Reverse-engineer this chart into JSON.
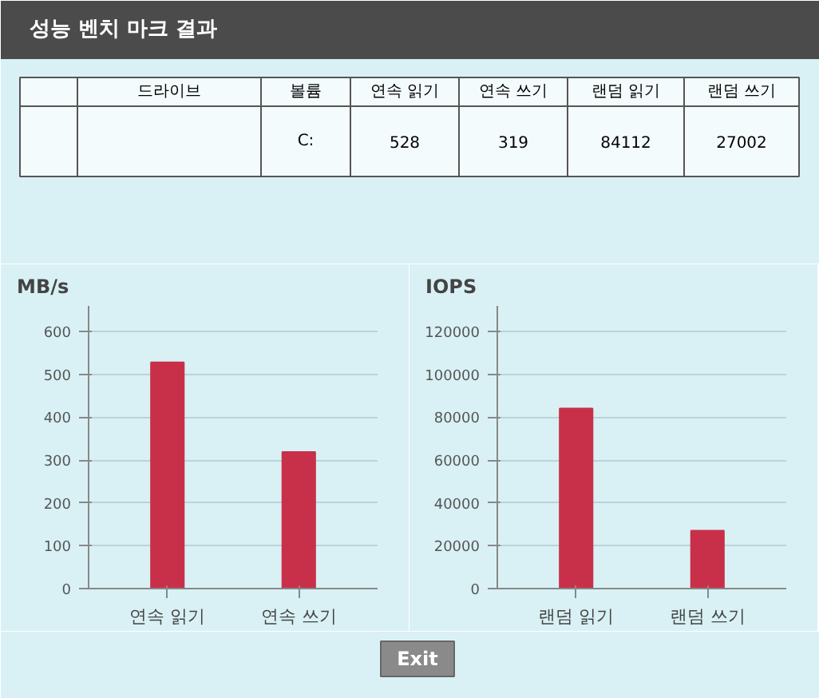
{
  "chart_data": [
    {
      "type": "other",
      "title": "성능 벤치 마크 결과",
      "annotations": [
        "드라이브",
        "볼륨",
        "연속 읽기",
        "연속 쓰기",
        "랜덤 읽기",
        "랜덤 쓰기",
        "C:",
        "528",
        "319",
        "84112",
        "27002",
        "Exit"
      ]
    },
    {
      "type": "bar",
      "ylabel": "MB/s",
      "categories": [
        "연속 읽기",
        "연속 쓰기"
      ],
      "series": [
        {
          "color": "#c8304a",
          "values": [
            528,
            319
          ]
        }
      ],
      "ylim": [
        0,
        660
      ],
      "yticks": [
        0,
        100,
        200,
        300,
        400,
        500,
        600
      ],
      "grid": "y"
    },
    {
      "type": "bar",
      "ylabel": "IOPS",
      "categories": [
        "랜덤 읽기",
        "랜덤 쓰기"
      ],
      "series": [
        {
          "color": "#c8304a",
          "values": [
            84112,
            27002
          ]
        }
      ],
      "ylim": [
        0,
        132000
      ],
      "yticks": [
        0,
        20000,
        40000,
        60000,
        80000,
        100000,
        120000
      ],
      "grid": "y"
    }
  ]
}
